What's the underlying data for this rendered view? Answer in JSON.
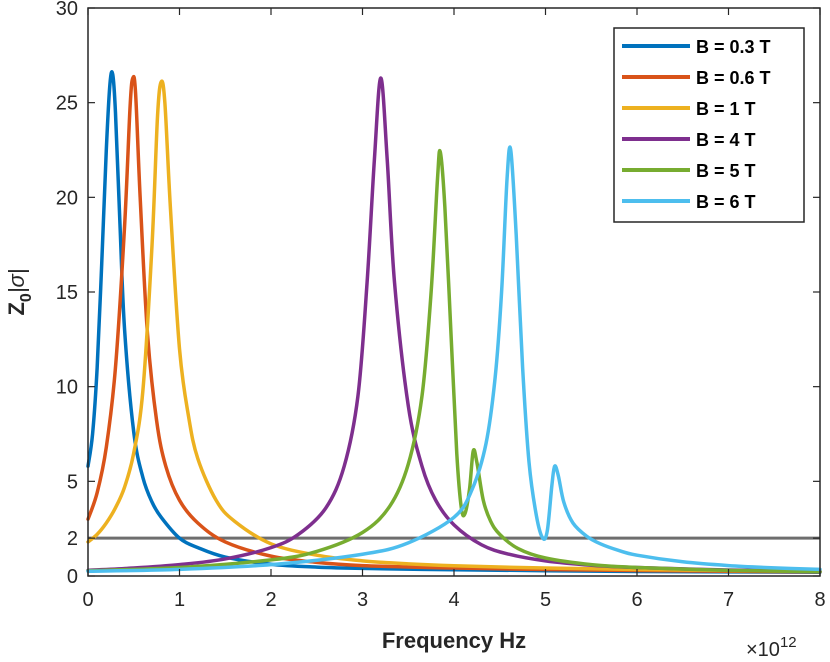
{
  "chart_data": {
    "type": "line",
    "xlabel": "Frequency Hz",
    "x_exponent": {
      "base": "×10",
      "power": "12"
    },
    "ylabel": {
      "main": "Z",
      "sub": "0",
      "rest": "|σ|"
    },
    "xlim": [
      0,
      8
    ],
    "ylim": [
      0,
      30
    ],
    "xticks": [
      "0",
      "1",
      "2",
      "3",
      "4",
      "5",
      "6",
      "7",
      "8"
    ],
    "xtick_values": [
      0,
      1,
      2,
      3,
      4,
      5,
      6,
      7,
      8
    ],
    "yticks": [
      "0",
      "2",
      "5",
      "10",
      "15",
      "20",
      "25",
      "30"
    ],
    "ytick_values": [
      0,
      2,
      5,
      10,
      15,
      20,
      25,
      30
    ],
    "grid": false,
    "legend_position": "top-right",
    "reference_line": {
      "y": 2,
      "color": "#6e6e6e"
    },
    "series": [
      {
        "name": "B = 0.3 T",
        "color": "#0072BD",
        "x": [
          0,
          0.05,
          0.1,
          0.15,
          0.2,
          0.24,
          0.27,
          0.3,
          0.35,
          0.4,
          0.5,
          0.6,
          0.7,
          0.8,
          1.0,
          1.2,
          1.5,
          2.0,
          2.5,
          3.0,
          4.0,
          5.0,
          6.0,
          7.0,
          8.0
        ],
        "y": [
          5.8,
          7.5,
          11.0,
          16.5,
          22.5,
          26.0,
          26.5,
          24.5,
          18.5,
          13.0,
          7.6,
          5.2,
          3.9,
          3.1,
          2.0,
          1.5,
          1.0,
          0.62,
          0.47,
          0.4,
          0.33,
          0.28,
          0.24,
          0.22,
          0.2
        ]
      },
      {
        "name": "B = 0.6 T",
        "color": "#D95319",
        "x": [
          0,
          0.1,
          0.2,
          0.3,
          0.4,
          0.46,
          0.49,
          0.52,
          0.57,
          0.65,
          0.75,
          0.85,
          1.0,
          1.2,
          1.5,
          2.0,
          2.5,
          3.0,
          4.0,
          5.0,
          6.0,
          7.0,
          8.0
        ],
        "y": [
          3.0,
          4.4,
          6.8,
          11.0,
          18.5,
          24.8,
          26.3,
          25.5,
          20.0,
          12.8,
          8.2,
          5.8,
          4.0,
          2.8,
          1.8,
          1.05,
          0.72,
          0.55,
          0.42,
          0.34,
          0.29,
          0.25,
          0.22
        ]
      },
      {
        "name": "B = 1 T",
        "color": "#EDB120",
        "x": [
          0,
          0.1,
          0.2,
          0.3,
          0.4,
          0.5,
          0.6,
          0.7,
          0.76,
          0.8,
          0.84,
          0.9,
          1.0,
          1.1,
          1.2,
          1.4,
          1.6,
          2.0,
          2.5,
          3.0,
          3.5,
          4.0,
          5.0,
          6.0,
          7.0,
          8.0
        ],
        "y": [
          1.8,
          2.2,
          2.8,
          3.6,
          4.7,
          6.5,
          9.8,
          17.5,
          24.3,
          26.1,
          25.0,
          19.5,
          12.0,
          8.4,
          6.2,
          4.0,
          2.9,
          1.7,
          1.1,
          0.8,
          0.64,
          0.54,
          0.42,
          0.34,
          0.29,
          0.25
        ]
      },
      {
        "name": "B = 4 T",
        "color": "#7E2F8E",
        "x": [
          0,
          0.5,
          1.0,
          1.5,
          2.0,
          2.3,
          2.6,
          2.8,
          2.95,
          3.05,
          3.13,
          3.2,
          3.27,
          3.35,
          3.5,
          3.65,
          3.8,
          4.0,
          4.3,
          4.6,
          5.0,
          5.5,
          6.0,
          7.0,
          8.0
        ],
        "y": [
          0.3,
          0.42,
          0.6,
          0.9,
          1.5,
          2.2,
          3.6,
          5.8,
          9.5,
          15.5,
          22.0,
          26.3,
          22.0,
          15.5,
          9.0,
          5.8,
          4.0,
          2.7,
          1.65,
          1.15,
          0.8,
          0.57,
          0.45,
          0.32,
          0.25
        ]
      },
      {
        "name": "B = 5 T",
        "color": "#77AC30",
        "x": [
          0,
          1.0,
          2.0,
          2.5,
          3.0,
          3.3,
          3.5,
          3.65,
          3.75,
          3.82,
          3.85,
          3.9,
          3.97,
          4.03,
          4.08,
          4.12,
          4.17,
          4.21,
          4.25,
          4.32,
          4.4,
          4.5,
          4.7,
          5.0,
          5.5,
          6.0,
          7.0,
          8.0
        ],
        "y": [
          0.28,
          0.45,
          0.85,
          1.3,
          2.3,
          3.7,
          5.9,
          9.5,
          15.0,
          21.0,
          22.4,
          19.5,
          12.5,
          6.5,
          3.6,
          3.3,
          4.6,
          6.6,
          6.0,
          4.0,
          2.9,
          2.2,
          1.45,
          0.95,
          0.6,
          0.45,
          0.3,
          0.23
        ]
      },
      {
        "name": "B = 6 T",
        "color": "#4DBEEE",
        "x": [
          0,
          1.0,
          2.0,
          3.0,
          3.5,
          4.0,
          4.2,
          4.35,
          4.45,
          4.52,
          4.58,
          4.62,
          4.68,
          4.75,
          4.82,
          4.9,
          4.97,
          5.02,
          5.07,
          5.1,
          5.14,
          5.2,
          5.3,
          5.45,
          5.6,
          5.8,
          6.0,
          6.5,
          7.0,
          7.5,
          8.0
        ],
        "y": [
          0.25,
          0.35,
          0.6,
          1.15,
          1.75,
          3.1,
          4.6,
          7.0,
          10.5,
          15.0,
          21.0,
          22.5,
          18.0,
          11.0,
          6.0,
          3.2,
          2.0,
          2.4,
          4.8,
          5.8,
          5.3,
          3.9,
          2.8,
          2.1,
          1.7,
          1.35,
          1.1,
          0.75,
          0.55,
          0.43,
          0.35
        ]
      }
    ]
  }
}
